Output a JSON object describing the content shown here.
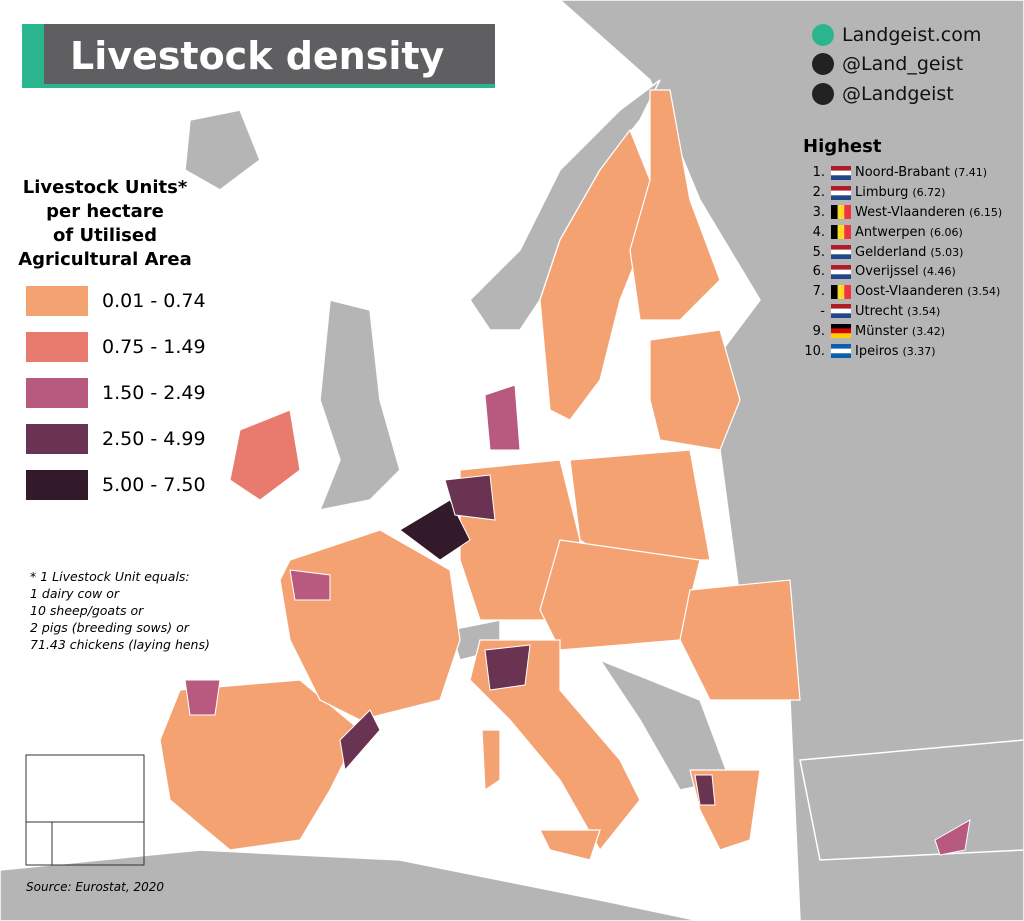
{
  "header": {
    "title": "Livestock density"
  },
  "social": [
    "Landgeist.com",
    "@Land_geist",
    "@Landgeist"
  ],
  "legend": {
    "title": [
      "Livestock Units*",
      "per hectare",
      "of Utilised",
      "Agricultural Area"
    ],
    "items": [
      {
        "label": "0.01 - 0.74",
        "color": "#f5a272"
      },
      {
        "label": "0.75 - 1.49",
        "color": "#e97b6e"
      },
      {
        "label": "1.50 - 2.49",
        "color": "#b85a80"
      },
      {
        "label": "2.50 - 4.99",
        "color": "#6b3352"
      },
      {
        "label": "5.00 - 7.50",
        "color": "#331a2b"
      }
    ]
  },
  "footnote": [
    "* 1 Livestock Unit equals:",
    "1 dairy cow or",
    "10 sheep/goats or",
    "2 pigs (breeding sows) or",
    "71.43 chickens (laying hens)"
  ],
  "highest": {
    "title": "Highest",
    "rows": [
      {
        "rank": "1.",
        "region": "Noord-Brabant",
        "value": "(7.41)"
      },
      {
        "rank": "2.",
        "region": "Limburg",
        "value": "(6.72)"
      },
      {
        "rank": "3.",
        "region": "West-Vlaanderen",
        "value": "(6.15)"
      },
      {
        "rank": "4.",
        "region": "Antwerpen",
        "value": "(6.06)"
      },
      {
        "rank": "5.",
        "region": "Gelderland",
        "value": "(5.03)"
      },
      {
        "rank": "6.",
        "region": "Overijssel",
        "value": "(4.46)"
      },
      {
        "rank": "7.",
        "region": "Oost-Vlaanderen",
        "value": "(3.54)"
      },
      {
        "rank": "-",
        "region": "Utrecht",
        "value": "(3.54)"
      },
      {
        "rank": "9.",
        "region": "Münster",
        "value": "(3.42)"
      },
      {
        "rank": "10.",
        "region": "Ipeiros",
        "value": "(3.37)"
      }
    ]
  },
  "source": "Source: Eurostat, 2020"
}
